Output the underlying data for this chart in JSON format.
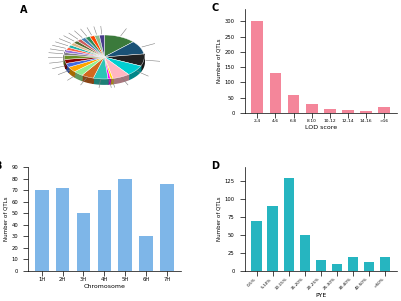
{
  "pie_sizes": [
    13,
    10,
    9,
    8,
    7,
    1,
    1,
    6,
    5,
    4,
    4,
    3,
    3,
    3,
    2,
    2,
    2,
    2,
    2,
    2,
    2,
    2,
    2,
    2,
    2,
    2
  ],
  "pie_colors": [
    "#3B7A3B",
    "#1A5276",
    "#222222",
    "#00CED1",
    "#FFB6C1",
    "#FFD700",
    "#FF00FF",
    "#2EC4B6",
    "#D2691E",
    "#90EE90",
    "#FFA500",
    "#4169E1",
    "#8B0000",
    "#6B8E23",
    "#808080",
    "#9370DB",
    "#FF6347",
    "#20B2AA",
    "#DEB887",
    "#556B2F",
    "#CD5C5C",
    "#4682B4",
    "#2E8B57",
    "#FF4500",
    "#8FBC8F",
    "#483D8B"
  ],
  "pie_explode": [
    0,
    0,
    0,
    0,
    0,
    0,
    0,
    0,
    0,
    0,
    0,
    0,
    0,
    0,
    0,
    0,
    0,
    0,
    0,
    0,
    0,
    0,
    0,
    0,
    0,
    0
  ],
  "bar_B_categories": [
    "1H",
    "2H",
    "3H",
    "4H",
    "5H",
    "6H",
    "7H"
  ],
  "bar_B_values": [
    70,
    72,
    50,
    70,
    80,
    30,
    75
  ],
  "bar_B_color": "#7EB6E8",
  "bar_B_xlabel": "Chromosome",
  "bar_B_ylabel": "Number of QTLs",
  "bar_B_ylim": [
    0,
    90
  ],
  "bar_B_yticks": [
    0,
    10,
    20,
    30,
    40,
    50,
    60,
    70,
    80,
    90
  ],
  "bar_C_categories": [
    "2-4",
    "4-6",
    "6-8",
    "8-10",
    "10-12",
    "12-14",
    "14-16",
    ">16"
  ],
  "bar_C_values": [
    300,
    130,
    60,
    30,
    12,
    10,
    8,
    20
  ],
  "bar_C_color": "#F4869A",
  "bar_C_xlabel": "LOD score",
  "bar_C_ylabel": "Number of QTLs",
  "bar_C_ylim": [
    0,
    340
  ],
  "bar_C_yticks": [
    0,
    50,
    100,
    150,
    200,
    250,
    300
  ],
  "bar_D_categories": [
    "0-5%",
    "5-10%",
    "10-15%",
    "15-20%",
    "20-25%",
    "25-30%",
    "30-40%",
    "40-50%",
    ">50%"
  ],
  "bar_D_values": [
    70,
    90,
    130,
    50,
    15,
    10,
    20,
    12,
    20
  ],
  "bar_D_color": "#26B5C0",
  "bar_D_xlabel": "PYE",
  "bar_D_ylabel": "Number of QTLs",
  "bar_D_ylim": [
    0,
    145
  ],
  "bar_D_yticks": [
    0,
    25,
    50,
    75,
    100,
    125
  ],
  "panel_labels": [
    "A",
    "B",
    "C",
    "D"
  ],
  "bg_color": "#FFFFFF"
}
